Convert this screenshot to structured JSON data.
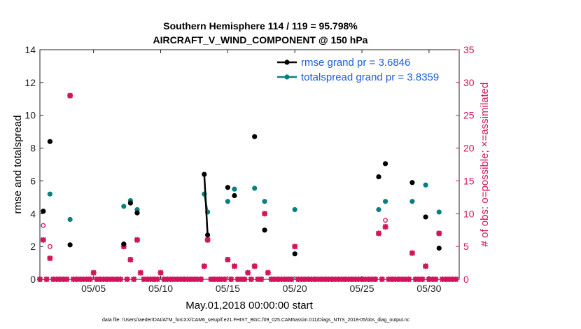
{
  "chart_data": {
    "type": "scatter",
    "title": "Southern Hemisphere 114 / 119 = 95.798%",
    "subtitle": "AIRCRAFT_V_WIND_COMPONENT @ 150 hPa",
    "xlabel": "May.01,2018 00:00:00 start",
    "ylabel_left": "rmse and totalspread",
    "ylabel_right": "# of obs: o=possible; ×=assimilated",
    "xlim": [
      1,
      32.25
    ],
    "ylim_left": [
      0,
      14
    ],
    "ylim_right": [
      0,
      35
    ],
    "x_ticks": [
      5,
      10,
      15,
      20,
      25,
      30
    ],
    "x_tick_labels": [
      "05/05",
      "05/10",
      "05/15",
      "05/20",
      "05/25",
      "05/30"
    ],
    "y_left_ticks": [
      0,
      2,
      4,
      6,
      8,
      10,
      12,
      14
    ],
    "y_right_ticks": [
      0,
      5,
      10,
      15,
      20,
      25,
      30,
      35
    ],
    "legend": [
      {
        "label": "rmse grand pr = 3.6846",
        "color": "#000000"
      },
      {
        "label": "totalspread grand pr = 3.8359",
        "color": "#0a7f7f"
      }
    ],
    "footnote": "data file: /Users/raeder/DAI/ATM_forcXX/CAM6_setup/f.e21.FHIST_BGC.f09_025.CAM6assim.011/Diags_NTrS_2018-05/obs_diag_output.nc",
    "colors": {
      "rmse": "#000000",
      "spread": "#0a7f7f",
      "obs": "#d4145a"
    },
    "series": [
      {
        "name": "rmse",
        "axis": "left",
        "points": [
          [
            1.25,
            4.15
          ],
          [
            1.75,
            8.4
          ],
          [
            3.25,
            2.1
          ],
          [
            7.25,
            2.15
          ],
          [
            7.75,
            4.65
          ],
          [
            8.25,
            4.05
          ],
          [
            13.25,
            6.4
          ],
          [
            13.5,
            2.7
          ],
          [
            15.0,
            5.6
          ],
          [
            15.5,
            5.1
          ],
          [
            17.0,
            8.7
          ],
          [
            17.75,
            3.0
          ],
          [
            20.0,
            1.55
          ],
          [
            26.25,
            6.25
          ],
          [
            26.75,
            7.05
          ],
          [
            28.75,
            5.9
          ],
          [
            29.75,
            3.8
          ],
          [
            30.75,
            1.9
          ]
        ],
        "connected": [
          [
            13.25,
            6.4
          ],
          [
            13.5,
            2.7
          ]
        ]
      },
      {
        "name": "totalspread",
        "axis": "left",
        "points": [
          [
            1.25,
            4.15
          ],
          [
            1.75,
            5.2
          ],
          [
            3.25,
            3.65
          ],
          [
            7.25,
            4.45
          ],
          [
            7.75,
            4.8
          ],
          [
            8.25,
            4.25
          ],
          [
            13.25,
            5.2
          ],
          [
            13.5,
            4.1
          ],
          [
            15.0,
            4.75
          ],
          [
            15.5,
            5.5
          ],
          [
            17.0,
            5.55
          ],
          [
            17.75,
            4.75
          ],
          [
            20.0,
            4.25
          ],
          [
            26.25,
            4.25
          ],
          [
            26.75,
            4.75
          ],
          [
            28.75,
            4.75
          ],
          [
            29.75,
            5.75
          ],
          [
            30.75,
            4.1
          ]
        ],
        "connected": [
          [
            13.25,
            5.2
          ],
          [
            13.5,
            4.1
          ]
        ]
      },
      {
        "name": "obs_possible",
        "axis": "right",
        "marker": "o",
        "points": [
          [
            1.25,
            8.2
          ],
          [
            1.75,
            5.0
          ],
          [
            3.25,
            28.0
          ],
          [
            7.25,
            5.0
          ],
          [
            7.75,
            3.0
          ],
          [
            8.25,
            6.0
          ],
          [
            13.25,
            2.0
          ],
          [
            13.5,
            6.0
          ],
          [
            15.0,
            3.0
          ],
          [
            15.5,
            2.0
          ],
          [
            17.0,
            2.0
          ],
          [
            17.75,
            10.0
          ],
          [
            20.0,
            5.0
          ],
          [
            26.25,
            7.0
          ],
          [
            26.75,
            9.0
          ],
          [
            28.75,
            4.0
          ],
          [
            29.75,
            2.0
          ],
          [
            30.75,
            7.0
          ]
        ]
      },
      {
        "name": "obs_assimilated",
        "axis": "right",
        "marker": "x",
        "points": [
          [
            1.25,
            6.0
          ],
          [
            1.75,
            3.2
          ],
          [
            3.25,
            28.0
          ],
          [
            5.0,
            1.0
          ],
          [
            7.25,
            5.0
          ],
          [
            7.75,
            3.0
          ],
          [
            8.25,
            6.0
          ],
          [
            8.5,
            1.0
          ],
          [
            10.0,
            1.0
          ],
          [
            13.25,
            2.0
          ],
          [
            13.5,
            6.0
          ],
          [
            15.0,
            3.0
          ],
          [
            15.5,
            2.0
          ],
          [
            16.5,
            1.0
          ],
          [
            17.0,
            2.0
          ],
          [
            17.75,
            10.0
          ],
          [
            18.0,
            1.0
          ],
          [
            20.0,
            5.0
          ],
          [
            26.25,
            7.0
          ],
          [
            26.75,
            8.0
          ],
          [
            28.75,
            4.0
          ],
          [
            29.75,
            2.0
          ],
          [
            30.75,
            7.0
          ]
        ]
      },
      {
        "name": "obs_zero",
        "axis": "right",
        "marker": "x",
        "x": [
          1,
          1.5,
          2,
          2.25,
          2.5,
          2.75,
          3,
          3.5,
          3.75,
          4,
          4.25,
          4.5,
          4.75,
          5.25,
          5.5,
          5.75,
          6,
          6.25,
          6.5,
          6.75,
          7,
          7.5,
          8,
          8.75,
          9,
          9.25,
          9.5,
          9.75,
          10.25,
          10.5,
          10.75,
          11,
          11.25,
          11.5,
          11.75,
          12,
          12.25,
          12.5,
          12.75,
          13,
          13.75,
          14,
          14.25,
          14.5,
          14.75,
          15.25,
          15.75,
          16,
          16.25,
          16.75,
          17.25,
          17.5,
          18.25,
          18.5,
          18.75,
          19,
          19.25,
          19.5,
          19.75,
          20.25,
          20.5,
          20.75,
          21,
          21.25,
          21.5,
          21.75,
          22,
          22.25,
          22.5,
          22.75,
          23,
          23.25,
          23.5,
          23.75,
          24,
          24.25,
          24.5,
          24.75,
          25,
          25.25,
          25.5,
          25.75,
          26,
          26.5,
          27,
          27.25,
          27.5,
          27.75,
          28,
          28.25,
          28.5,
          29,
          29.25,
          29.5,
          30,
          30.25,
          30.5,
          31,
          31.25,
          31.5,
          31.75,
          32
        ],
        "value": 0
      }
    ]
  }
}
